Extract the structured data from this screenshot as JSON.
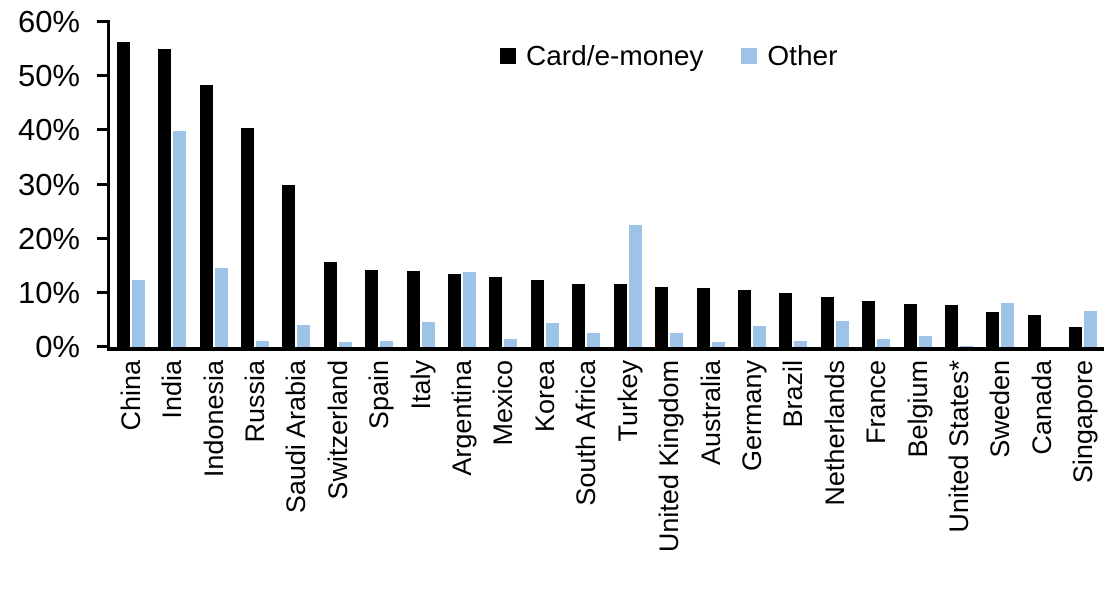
{
  "chart_data": {
    "type": "bar",
    "categories": [
      "China",
      "India",
      "Indonesia",
      "Russia",
      "Saudi Arabia",
      "Switzerland",
      "Spain",
      "Italy",
      "Argentina",
      "Mexico",
      "Korea",
      "South Africa",
      "Turkey",
      "United Kingdom",
      "Australia",
      "Germany",
      "Brazil",
      "Netherlands",
      "France",
      "Belgium",
      "United States*",
      "Sweden",
      "Canada",
      "Singapore"
    ],
    "series": [
      {
        "name": "Card/e-money",
        "color": "#000000",
        "values": [
          56.3,
          55.1,
          48.4,
          40.5,
          29.9,
          15.7,
          14.3,
          14.1,
          13.4,
          12.9,
          12.3,
          11.7,
          11.6,
          11.1,
          10.8,
          10.6,
          9.9,
          9.2,
          8.5,
          8.0,
          7.7,
          6.5,
          5.9,
          3.7
        ]
      },
      {
        "name": "Other",
        "color": "#9DC3E6",
        "values": [
          12.4,
          39.8,
          14.6,
          1.1,
          4.0,
          0.9,
          1.1,
          4.7,
          13.8,
          1.4,
          4.5,
          2.5,
          22.6,
          2.5,
          1.0,
          3.8,
          1.1,
          4.8,
          1.4,
          2.0,
          0.2,
          8.1,
          0,
          6.6
        ]
      }
    ],
    "title": "",
    "xlabel": "",
    "ylabel": "",
    "ylim": [
      0,
      60
    ],
    "y_ticks": [
      0,
      10,
      20,
      30,
      40,
      50,
      60
    ],
    "y_tick_labels": [
      "0%",
      "10%",
      "20%",
      "30%",
      "40%",
      "50%",
      "60%"
    ],
    "grid": false,
    "legend_position": "top-center",
    "x_label_rotation": 90
  }
}
